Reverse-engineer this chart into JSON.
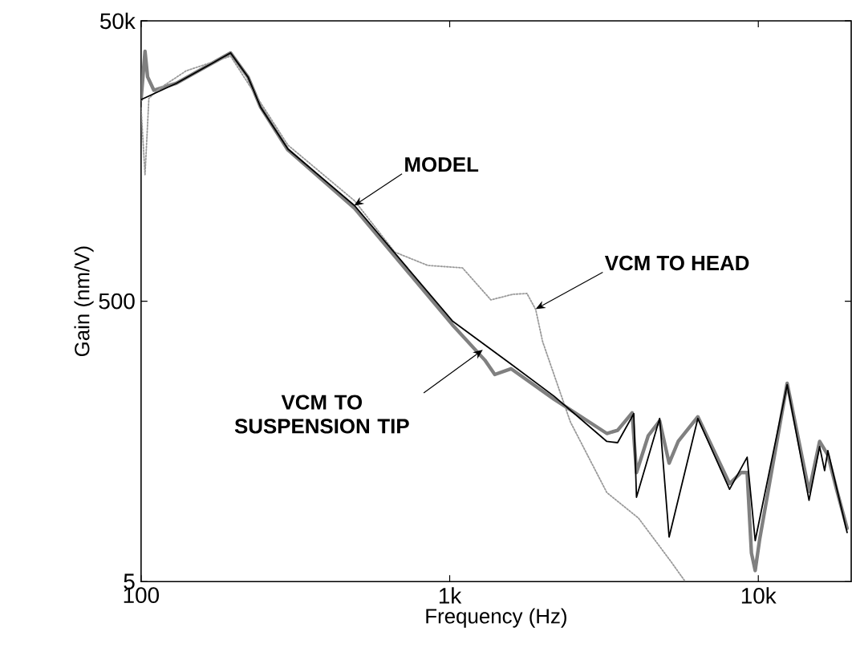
{
  "chart_data": {
    "type": "line",
    "xlabel": "Frequency (Hz)",
    "ylabel": "Gain (nm/V)",
    "log": "xy",
    "xlim": [
      100,
      20000
    ],
    "ylim": [
      5,
      50000
    ],
    "xticks": [
      100,
      {
        "value": 1000,
        "label": "1k"
      },
      {
        "value": 10000,
        "label": "10k"
      }
    ],
    "yticks": [
      5,
      500,
      {
        "value": 50000,
        "label": "50k"
      }
    ],
    "series": [
      {
        "color": "#808080",
        "line_style": "solid",
        "x": [
          100,
          103,
          105,
          110,
          130,
          161,
          195,
          222,
          244,
          299,
          492,
          1020,
          1300,
          1400,
          1580,
          2180,
          3230,
          3500,
          3900,
          4030,
          4400,
          4790,
          5140,
          5500,
          6370,
          8070,
          8800,
          9200,
          9500,
          9770,
          10100,
          12400,
          14600,
          15800,
          16800,
          18000,
          19400
        ],
        "values": [
          13700,
          30300,
          19900,
          16000,
          17900,
          23300,
          29500,
          19900,
          12100,
          6000,
          2300,
          340,
          190,
          150,
          165,
          100,
          57,
          60,
          80,
          30,
          55,
          70,
          35,
          50,
          75,
          25,
          30,
          30,
          8,
          6,
          10,
          130,
          22,
          50,
          40,
          22,
          12
        ]
      },
      {
        "color": "#999999",
        "line_style": "dotted",
        "x": [
          100,
          103,
          106,
          115,
          140,
          195,
          299,
          492,
          664,
          850,
          1100,
          1360,
          1600,
          1780,
          1900,
          2000,
          2460,
          3230,
          4090,
          5200,
          5800
        ],
        "values": [
          12000,
          4000,
          14000,
          16500,
          22000,
          28000,
          6500,
          2600,
          1120,
          900,
          865,
          511,
          560,
          568,
          436,
          258,
          69,
          21.6,
          14.2,
          7,
          5
        ]
      },
      {
        "color": "#000000",
        "line_style": "solid",
        "x": [
          100,
          130,
          161,
          195,
          222,
          244,
          299,
          492,
          1020,
          1580,
          2180,
          3230,
          3500,
          3950,
          4030,
          4790,
          5140,
          6370,
          8070,
          9200,
          9770,
          12400,
          14600,
          15800,
          16400,
          16800,
          19400
        ],
        "values": [
          13700,
          17900,
          23300,
          29500,
          19900,
          12100,
          6100,
          2400,
          362,
          178,
          105,
          50,
          49,
          79,
          20,
          73,
          10.4,
          73,
          22.8,
          38.6,
          9.8,
          127,
          19,
          46,
          31,
          43,
          11.2
        ]
      }
    ],
    "annotations": [
      {
        "text": "MODEL",
        "x": 490,
        "y": 2400
      },
      {
        "text": "VCM TO HEAD",
        "x": 1900,
        "y": 440
      },
      {
        "text": "VCM TO SUSPENSION TIP",
        "x": 1280,
        "y": 225
      }
    ]
  }
}
